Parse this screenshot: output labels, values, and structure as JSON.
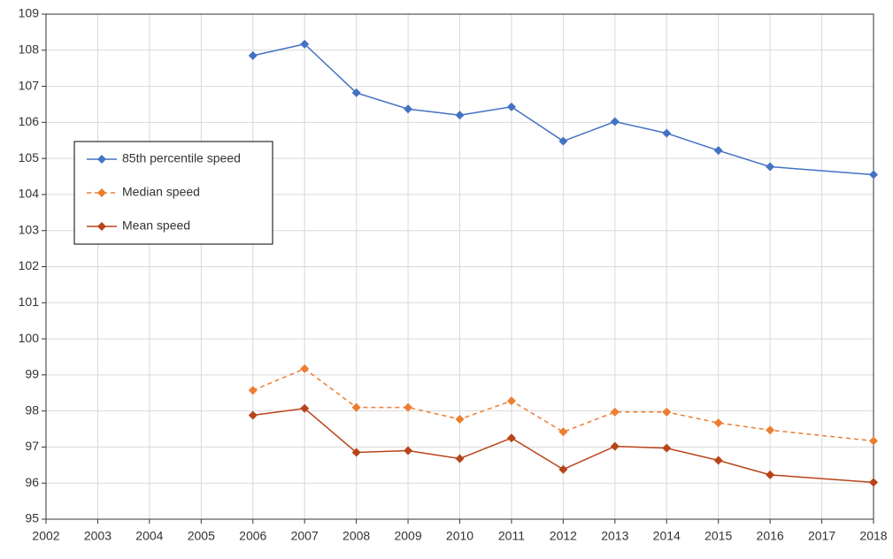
{
  "chart_data": {
    "type": "line",
    "x": [
      2006,
      2007,
      2008,
      2009,
      2010,
      2011,
      2012,
      2013,
      2014,
      2015,
      2016,
      2018
    ],
    "xlim": [
      2002,
      2018
    ],
    "xticks": [
      2002,
      2003,
      2004,
      2005,
      2006,
      2007,
      2008,
      2009,
      2010,
      2011,
      2012,
      2013,
      2014,
      2015,
      2016,
      2017,
      2018
    ],
    "ylim": [
      95,
      109
    ],
    "yticks": [
      95,
      96,
      97,
      98,
      99,
      100,
      101,
      102,
      103,
      104,
      105,
      106,
      107,
      108,
      109
    ],
    "grid": true,
    "legend": "upper-left",
    "series": [
      {
        "name": "85th percentile speed",
        "color": "#4472c4",
        "dashed": false,
        "values": [
          107.85,
          108.17,
          106.82,
          106.37,
          106.2,
          106.43,
          105.48,
          106.02,
          105.7,
          105.22,
          104.77,
          104.55
        ]
      },
      {
        "name": "Median speed",
        "color": "#ed7d31",
        "dashed": true,
        "values": [
          98.57,
          99.17,
          98.1,
          98.1,
          97.77,
          98.28,
          97.42,
          97.97,
          97.97,
          97.67,
          97.47,
          97.17
        ]
      },
      {
        "name": "Mean speed",
        "color": "#b8441a",
        "dashed": false,
        "values": [
          97.88,
          98.07,
          96.85,
          96.9,
          96.68,
          97.25,
          96.38,
          97.02,
          96.97,
          96.63,
          96.23,
          96.02
        ]
      }
    ]
  }
}
